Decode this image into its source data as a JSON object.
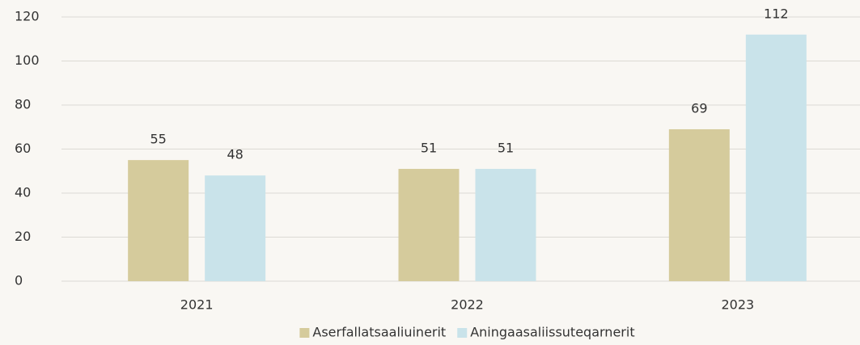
{
  "chart_data": {
    "type": "bar",
    "categories": [
      "2021",
      "2022",
      "2023"
    ],
    "series": [
      {
        "name": "Aserfallatsaaliuinerit",
        "color": "#d5cb9c",
        "values": [
          55,
          51,
          69
        ]
      },
      {
        "name": "Aningaasaliissuteqarnerit",
        "color": "#c9e3ea",
        "values": [
          48,
          51,
          112
        ]
      }
    ],
    "ylim": [
      0,
      120
    ],
    "yticks": [
      0,
      20,
      40,
      60,
      80,
      100,
      120
    ],
    "grid": true,
    "legend": "bottom"
  }
}
